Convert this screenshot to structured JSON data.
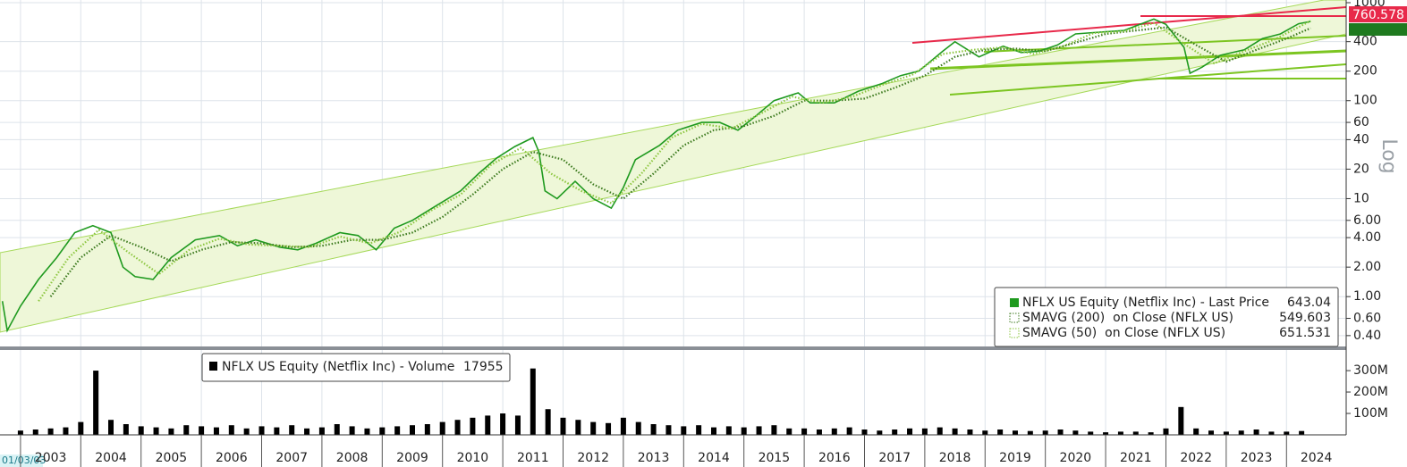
{
  "chart_data": [
    {
      "type": "line",
      "y_label": "Log",
      "log_scale": true,
      "grid": true,
      "xlim": [
        2002.66,
        2024.99
      ],
      "ylim": [
        0.31,
        1065
      ],
      "yticks": [
        1000,
        400,
        200,
        100,
        60,
        40,
        20,
        10,
        {
          "value": 6,
          "label": "6.00"
        },
        {
          "value": 4,
          "label": "4.00"
        },
        {
          "value": 2,
          "label": "2.00"
        },
        {
          "value": 1,
          "label": "1.00"
        },
        {
          "value": 0.6,
          "label": "0.60"
        },
        {
          "value": 0.4,
          "label": "0.40"
        }
      ],
      "tag": 760.578,
      "series": [
        {
          "name": "NFLX US Equity (Netflix Inc) - Last Price",
          "color": "#1f9a1f",
          "x": [
            2002.7,
            2002.78,
            2003.0,
            2003.3,
            2003.6,
            2003.9,
            2004.2,
            2004.5,
            2004.7,
            2004.9,
            2005.2,
            2005.5,
            2005.9,
            2006.3,
            2006.6,
            2006.9,
            2007.3,
            2007.6,
            2007.9,
            2008.3,
            2008.6,
            2008.9,
            2009.2,
            2009.5,
            2009.9,
            2010.3,
            2010.6,
            2010.9,
            2011.2,
            2011.5,
            2011.6,
            2011.7,
            2011.9,
            2012.2,
            2012.5,
            2012.8,
            2013.0,
            2013.2,
            2013.6,
            2013.9,
            2014.3,
            2014.6,
            2014.9,
            2015.2,
            2015.5,
            2015.9,
            2016.1,
            2016.5,
            2016.9,
            2017.3,
            2017.6,
            2017.9,
            2018.3,
            2018.5,
            2018.9,
            2019.3,
            2019.6,
            2019.9,
            2020.2,
            2020.5,
            2020.9,
            2021.3,
            2021.8,
            2022.0,
            2022.3,
            2022.4,
            2022.6,
            2022.9,
            2023.3,
            2023.6,
            2023.9,
            2024.2,
            2024.4
          ],
          "values": [
            0.9,
            0.45,
            0.8,
            1.5,
            2.5,
            4.5,
            5.3,
            4.5,
            2.0,
            1.6,
            1.5,
            2.5,
            3.8,
            4.2,
            3.3,
            3.8,
            3.2,
            3.0,
            3.5,
            4.5,
            4.2,
            3.0,
            5,
            6,
            8.5,
            12,
            18,
            26,
            34,
            42,
            30,
            12,
            10,
            15,
            10,
            8,
            13,
            25,
            35,
            50,
            60,
            60,
            50,
            70,
            100,
            120,
            95,
            95,
            125,
            150,
            180,
            200,
            320,
            400,
            280,
            360,
            310,
            320,
            370,
            480,
            500,
            520,
            680,
            600,
            350,
            190,
            220,
            290,
            330,
            430,
            480,
            610,
            643.04
          ]
        },
        {
          "name": "SMAVG (200)  on Close (NFLX US)",
          "color": "#3c7a1e",
          "x": [
            2003.5,
            2004.0,
            2004.5,
            2005.0,
            2005.5,
            2006.0,
            2006.5,
            2007.0,
            2007.5,
            2008.0,
            2008.5,
            2009.0,
            2009.5,
            2010.0,
            2010.5,
            2011.0,
            2011.5,
            2012.0,
            2012.5,
            2013.0,
            2013.5,
            2014.0,
            2014.5,
            2015.0,
            2015.5,
            2016.0,
            2016.5,
            2017.0,
            2017.5,
            2018.0,
            2018.5,
            2019.0,
            2019.5,
            2020.0,
            2020.5,
            2021.0,
            2021.5,
            2022.0,
            2022.5,
            2023.0,
            2023.5,
            2024.0,
            2024.4
          ],
          "values": [
            1.0,
            2.5,
            4.2,
            3.2,
            2.3,
            3.0,
            3.6,
            3.5,
            3.2,
            3.3,
            3.8,
            3.8,
            4.5,
            6.5,
            11,
            20,
            30,
            25,
            14,
            10,
            18,
            35,
            50,
            55,
            70,
            100,
            100,
            105,
            135,
            180,
            280,
            330,
            340,
            320,
            390,
            480,
            520,
            560,
            370,
            250,
            330,
            430,
            549.603
          ]
        },
        {
          "name": "SMAVG (50)  on Close (NFLX US)",
          "color": "#8cc63f",
          "x": [
            2003.3,
            2003.8,
            2004.3,
            2004.8,
            2005.3,
            2005.8,
            2006.3,
            2006.8,
            2007.3,
            2007.8,
            2008.3,
            2008.8,
            2009.3,
            2009.8,
            2010.3,
            2010.8,
            2011.3,
            2011.8,
            2012.3,
            2012.8,
            2013.3,
            2013.8,
            2014.3,
            2014.8,
            2015.3,
            2015.8,
            2016.3,
            2016.8,
            2017.3,
            2017.8,
            2018.3,
            2018.8,
            2019.3,
            2019.8,
            2020.3,
            2020.8,
            2021.3,
            2021.8,
            2022.3,
            2022.8,
            2023.3,
            2023.8,
            2024.4
          ],
          "values": [
            0.9,
            2.5,
            4.8,
            2.8,
            1.7,
            3.0,
            3.9,
            3.4,
            3.3,
            3.2,
            4.1,
            3.5,
            4.6,
            7.5,
            11,
            22,
            33,
            18,
            12,
            9,
            18,
            42,
            58,
            52,
            75,
            110,
            95,
            110,
            145,
            185,
            300,
            330,
            350,
            300,
            360,
            490,
            510,
            620,
            380,
            240,
            320,
            420,
            651.531
          ]
        }
      ]
    },
    {
      "type": "bar",
      "legend": "NFLX US Equity (Netflix Inc) - Volume",
      "last": 17955,
      "start_date": "01/03/03",
      "color": "#000000",
      "xlim": [
        2002.66,
        2024.99
      ],
      "ylim": [
        0,
        392
      ],
      "yticks": [
        {
          "value": 300,
          "label": "300M"
        },
        {
          "value": 200,
          "label": "200M"
        },
        {
          "value": 100,
          "label": "100M"
        }
      ],
      "xticks": [
        {
          "value": 2003,
          "label": "2003"
        },
        {
          "value": 2004,
          "label": "2004"
        },
        {
          "value": 2005,
          "label": "2005"
        },
        {
          "value": 2006,
          "label": "2006"
        },
        {
          "value": 2007,
          "label": "2007"
        },
        {
          "value": 2008,
          "label": "2008"
        },
        {
          "value": 2009,
          "label": "2009"
        },
        {
          "value": 2010,
          "label": "2010"
        },
        {
          "value": 2011,
          "label": "2011"
        },
        {
          "value": 2012,
          "label": "2012"
        },
        {
          "value": 2013,
          "label": "2013"
        },
        {
          "value": 2014,
          "label": "2014"
        },
        {
          "value": 2015,
          "label": "2015"
        },
        {
          "value": 2016,
          "label": "2016"
        },
        {
          "value": 2017,
          "label": "2017"
        },
        {
          "value": 2018,
          "label": "2018"
        },
        {
          "value": 2019,
          "label": "2019"
        },
        {
          "value": 2020,
          "label": "2020"
        },
        {
          "value": 2021,
          "label": "2021"
        },
        {
          "value": 2022,
          "label": "2022"
        },
        {
          "value": 2023,
          "label": "2023"
        },
        {
          "value": 2024,
          "label": "2024"
        }
      ],
      "x": [
        2003.0,
        2003.25,
        2003.5,
        2003.75,
        2004.0,
        2004.25,
        2004.5,
        2004.75,
        2005.0,
        2005.25,
        2005.5,
        2005.75,
        2006.0,
        2006.25,
        2006.5,
        2006.75,
        2007.0,
        2007.25,
        2007.5,
        2007.75,
        2008.0,
        2008.25,
        2008.5,
        2008.75,
        2009.0,
        2009.25,
        2009.5,
        2009.75,
        2010.0,
        2010.25,
        2010.5,
        2010.75,
        2011.0,
        2011.25,
        2011.5,
        2011.75,
        2012.0,
        2012.25,
        2012.5,
        2012.75,
        2013.0,
        2013.25,
        2013.5,
        2013.75,
        2014.0,
        2014.25,
        2014.5,
        2014.75,
        2015.0,
        2015.25,
        2015.5,
        2015.75,
        2016.0,
        2016.25,
        2016.5,
        2016.75,
        2017.0,
        2017.25,
        2017.5,
        2017.75,
        2018.0,
        2018.25,
        2018.5,
        2018.75,
        2019.0,
        2019.25,
        2019.5,
        2019.75,
        2020.0,
        2020.25,
        2020.5,
        2020.75,
        2021.0,
        2021.25,
        2021.5,
        2021.75,
        2022.0,
        2022.25,
        2022.5,
        2022.75,
        2023.0,
        2023.25,
        2023.5,
        2023.75,
        2024.0,
        2024.25
      ],
      "values": [
        20,
        25,
        30,
        35,
        60,
        300,
        70,
        50,
        40,
        35,
        30,
        45,
        40,
        35,
        45,
        30,
        40,
        35,
        45,
        30,
        35,
        50,
        40,
        30,
        35,
        40,
        45,
        50,
        60,
        70,
        80,
        90,
        100,
        90,
        310,
        120,
        80,
        70,
        60,
        55,
        80,
        60,
        50,
        45,
        40,
        45,
        35,
        40,
        35,
        40,
        45,
        30,
        30,
        25,
        30,
        35,
        25,
        20,
        25,
        30,
        30,
        35,
        30,
        25,
        20,
        25,
        20,
        18,
        20,
        25,
        20,
        15,
        12,
        15,
        15,
        12,
        30,
        130,
        30,
        20,
        15,
        20,
        25,
        15,
        15,
        18
      ]
    }
  ]
}
